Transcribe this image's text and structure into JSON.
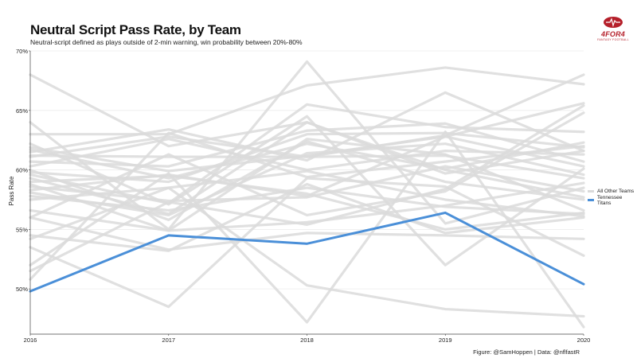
{
  "chart_data": {
    "type": "line",
    "title": "Neutral Script Pass Rate, by Team",
    "subtitle": "Neutral-script defined as plays outside of 2-min warning, win probability between 20%-80%",
    "xlabel": "",
    "ylabel": "Pass Rate",
    "x": [
      2016,
      2017,
      2018,
      2019,
      2020
    ],
    "xlim": [
      2016,
      2020
    ],
    "ylim": [
      0.462,
      0.7
    ],
    "y_ticks": [
      0.5,
      0.55,
      0.6,
      0.65,
      0.7
    ],
    "y_tick_labels": [
      "50%",
      "55%",
      "60%",
      "65%",
      "70%"
    ],
    "x_tick_labels": [
      "2016",
      "2017",
      "2018",
      "2019",
      "2020"
    ],
    "grid": true,
    "legend_position": "right",
    "highlight": {
      "name": "Tennessee Titans",
      "color": "#4a8fd8",
      "values": [
        0.498,
        0.545,
        0.538,
        0.564,
        0.504
      ]
    },
    "others": {
      "name": "All Other Teams",
      "color": "#dadada",
      "series": [
        [
          0.68,
          0.62,
          0.64,
          0.6,
          0.577
        ],
        [
          0.64,
          0.55,
          0.691,
          0.555,
          0.585
        ],
        [
          0.63,
          0.63,
          0.671,
          0.686,
          0.672
        ],
        [
          0.622,
          0.571,
          0.645,
          0.52,
          0.601
        ],
        [
          0.619,
          0.599,
          0.612,
          0.628,
          0.656
        ],
        [
          0.617,
          0.593,
          0.622,
          0.601,
          0.623
        ],
        [
          0.615,
          0.634,
          0.608,
          0.665,
          0.616
        ],
        [
          0.612,
          0.611,
          0.611,
          0.612,
          0.593
        ],
        [
          0.611,
          0.628,
          0.611,
          0.629,
          0.68
        ],
        [
          0.607,
          0.603,
          0.633,
          0.639,
          0.607
        ],
        [
          0.603,
          0.626,
          0.6,
          0.616,
          0.613
        ],
        [
          0.6,
          0.558,
          0.624,
          0.59,
          0.575
        ],
        [
          0.598,
          0.59,
          0.63,
          0.631,
          0.619
        ],
        [
          0.596,
          0.572,
          0.655,
          0.636,
          0.632
        ],
        [
          0.593,
          0.563,
          0.64,
          0.597,
          0.616
        ],
        [
          0.59,
          0.595,
          0.58,
          0.55,
          0.564
        ],
        [
          0.588,
          0.549,
          0.626,
          0.613,
          0.566
        ],
        [
          0.586,
          0.574,
          0.577,
          0.603,
          0.582
        ],
        [
          0.583,
          0.596,
          0.578,
          0.628,
          0.603
        ],
        [
          0.581,
          0.562,
          0.614,
          0.622,
          0.596
        ],
        [
          0.578,
          0.566,
          0.585,
          0.569,
          0.563
        ],
        [
          0.575,
          0.585,
          0.599,
          0.575,
          0.561
        ],
        [
          0.566,
          0.549,
          0.556,
          0.57,
          0.589
        ],
        [
          0.56,
          0.533,
          0.547,
          0.545,
          0.542
        ],
        [
          0.545,
          0.532,
          0.588,
          0.547,
          0.56
        ],
        [
          0.542,
          0.585,
          0.503,
          0.483,
          0.477
        ],
        [
          0.535,
          0.485,
          0.593,
          0.586,
          0.528
        ],
        [
          0.52,
          0.597,
          0.472,
          0.632,
          0.468
        ],
        [
          0.515,
          0.573,
          0.554,
          0.584,
          0.654
        ],
        [
          0.508,
          0.631,
          0.594,
          0.607,
          0.62
        ],
        [
          0.56,
          0.613,
          0.562,
          0.582,
          0.648
        ]
      ]
    },
    "legend": [
      "All Other Teams",
      "Tennessee Titans"
    ],
    "caption": "Figure: @SamHoppen | Data: @nflfastR"
  },
  "logo": {
    "text": "4FOR4",
    "subtext": "FANTASY FOOTBALL",
    "color": "#b51f2a"
  }
}
